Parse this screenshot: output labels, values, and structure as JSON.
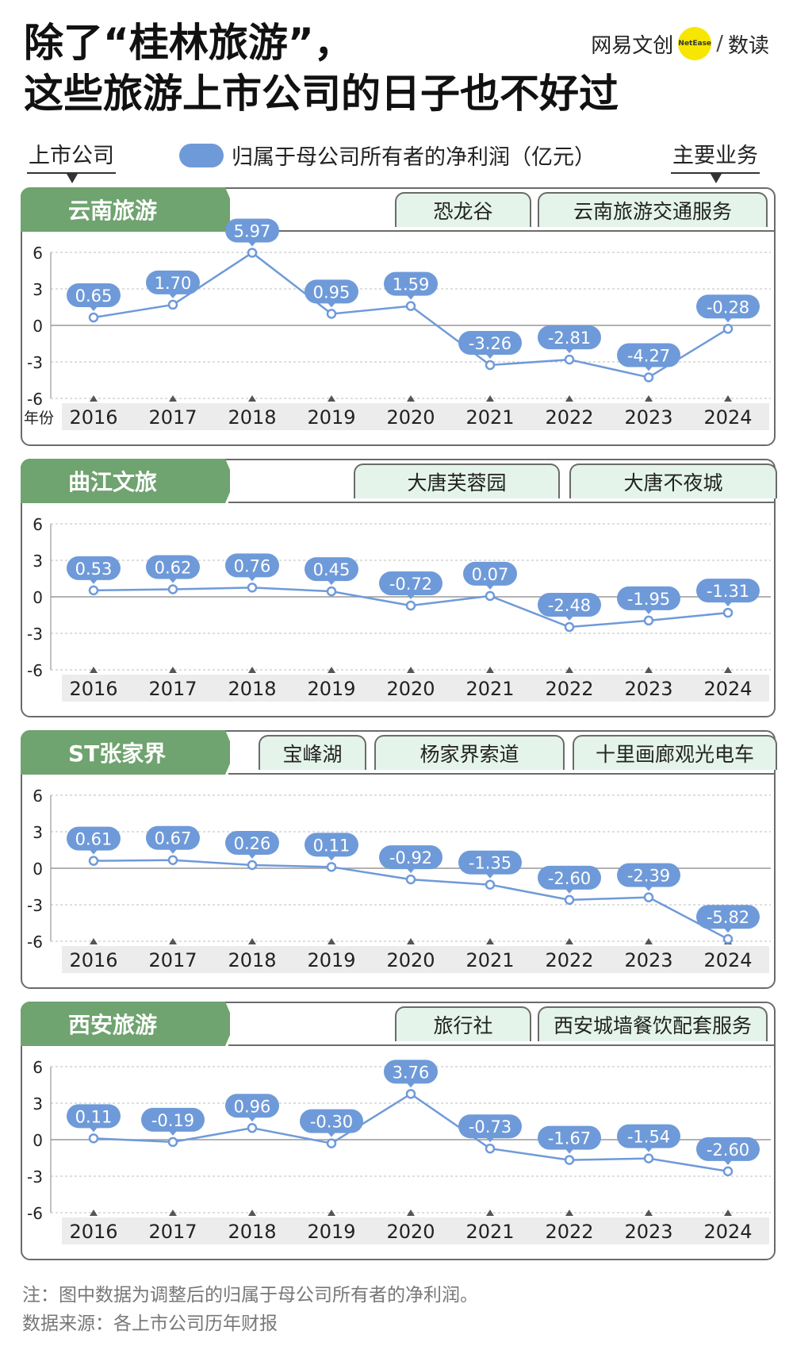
{
  "header": {
    "title_line1": "除了“桂林旅游”，",
    "title_line2": "这些旅游上市公司的日子也不好过",
    "brand_cn": "网易文创",
    "brand_dot": "NetEase",
    "brand_sep": "/",
    "brand_sub": "数读"
  },
  "legend": {
    "left": "上市公司",
    "series": "归属于母公司所有者的净利润（亿元）",
    "right": "主要业务",
    "x_label": "年份"
  },
  "colors": {
    "accent": "#6f9ad9",
    "panel_header": "#6fa36f",
    "tag_bg": "#e4f4ea",
    "axis_band": "#ececec"
  },
  "chart_data": [
    {
      "type": "line",
      "title": "云南旅游",
      "tags": [
        "恐龙谷",
        "云南旅游交通服务"
      ],
      "x": [
        "2016",
        "2017",
        "2018",
        "2019",
        "2020",
        "2021",
        "2022",
        "2023",
        "2024"
      ],
      "values": [
        0.65,
        1.7,
        5.97,
        0.95,
        1.59,
        -3.26,
        -2.81,
        -4.27,
        -0.28
      ],
      "labels": [
        "0.65",
        "1.70",
        "5.97",
        "0.95",
        "1.59",
        "-3.26",
        "-2.81",
        "-4.27",
        "-0.28"
      ],
      "ylim": [
        -6,
        6
      ],
      "yticks": [
        "6",
        "3",
        "0",
        "-3",
        "-6"
      ],
      "grid": true
    },
    {
      "type": "line",
      "title": "曲江文旅",
      "tags": [
        "大唐芙蓉园",
        "大唐不夜城"
      ],
      "x": [
        "2016",
        "2017",
        "2018",
        "2019",
        "2020",
        "2021",
        "2022",
        "2023",
        "2024"
      ],
      "values": [
        0.53,
        0.62,
        0.76,
        0.45,
        -0.72,
        0.07,
        -2.48,
        -1.95,
        -1.31
      ],
      "labels": [
        "0.53",
        "0.62",
        "0.76",
        "0.45",
        "-0.72",
        "0.07",
        "-2.48",
        "-1.95",
        "-1.31"
      ],
      "ylim": [
        -6,
        6
      ],
      "yticks": [
        "6",
        "3",
        "0",
        "-3",
        "-6"
      ],
      "grid": true
    },
    {
      "type": "line",
      "title": "ST张家界",
      "tags": [
        "宝峰湖",
        "杨家界索道",
        "十里画廊观光电车"
      ],
      "x": [
        "2016",
        "2017",
        "2018",
        "2019",
        "2020",
        "2021",
        "2022",
        "2023",
        "2024"
      ],
      "values": [
        0.61,
        0.67,
        0.26,
        0.11,
        -0.92,
        -1.35,
        -2.6,
        -2.39,
        -5.82
      ],
      "labels": [
        "0.61",
        "0.67",
        "0.26",
        "0.11",
        "-0.92",
        "-1.35",
        "-2.60",
        "-2.39",
        "-5.82"
      ],
      "ylim": [
        -6,
        6
      ],
      "yticks": [
        "6",
        "3",
        "0",
        "-3",
        "-6"
      ],
      "grid": true
    },
    {
      "type": "line",
      "title": "西安旅游",
      "tags": [
        "旅行社",
        "西安城墙餐饮配套服务"
      ],
      "x": [
        "2016",
        "2017",
        "2018",
        "2019",
        "2020",
        "2021",
        "2022",
        "2023",
        "2024"
      ],
      "values": [
        0.11,
        -0.19,
        0.96,
        -0.3,
        3.76,
        -0.73,
        -1.67,
        -1.54,
        -2.6
      ],
      "labels": [
        "0.11",
        "-0.19",
        "0.96",
        "-0.30",
        "3.76",
        "-0.73",
        "-1.67",
        "-1.54",
        "-2.60"
      ],
      "ylim": [
        -6,
        6
      ],
      "yticks": [
        "6",
        "3",
        "0",
        "-3",
        "-6"
      ],
      "grid": true
    }
  ],
  "footer": {
    "note": "注：图中数据为调整后的归属于母公司所有者的净利润。",
    "source": "数据来源：各上市公司历年财报"
  }
}
